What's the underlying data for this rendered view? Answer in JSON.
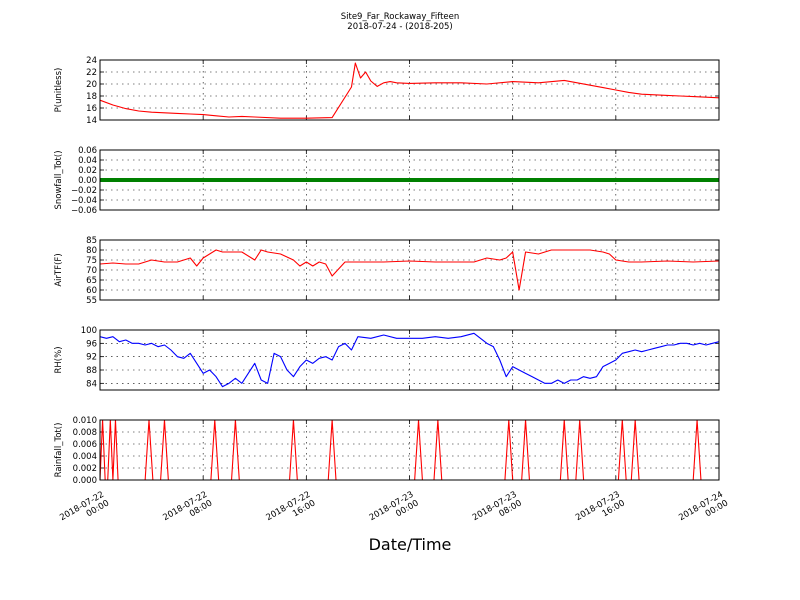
{
  "figure": {
    "title": "Site9_Far_Rockaway_Fifteen",
    "subtitle": "2018-07-24 - (2018-205)",
    "xlabel": "Date/Time"
  },
  "chart_data": [
    {
      "type": "line",
      "ylabel": "P(unitless)",
      "ylim": [
        14,
        24
      ],
      "yticks": [
        "14",
        "16",
        "18",
        "20",
        "22",
        "24"
      ],
      "grid": true,
      "color": "#ff0000",
      "series": [
        {
          "x": [
            0,
            1,
            2,
            3,
            4,
            5,
            6,
            7,
            8,
            9,
            10,
            11,
            12,
            14,
            16,
            18,
            19.5,
            19.8,
            20.2,
            20.6,
            21,
            21.5,
            22,
            22.5,
            23,
            24,
            26,
            28,
            30,
            32,
            34,
            36,
            37,
            38,
            39,
            40,
            41,
            42,
            43,
            44,
            45,
            46,
            47,
            48
          ],
          "values": [
            17.3,
            16.5,
            15.9,
            15.5,
            15.3,
            15.2,
            15.1,
            15.0,
            14.9,
            14.7,
            14.5,
            14.6,
            14.5,
            14.3,
            14.3,
            14.4,
            19.5,
            23.5,
            21.0,
            22.0,
            20.5,
            19.6,
            20.2,
            20.4,
            20.2,
            20.1,
            20.2,
            20.2,
            20.0,
            20.4,
            20.2,
            20.6,
            20.2,
            19.8,
            19.4,
            19.0,
            18.6,
            18.3,
            18.2,
            18.1,
            18.0,
            17.9,
            17.8,
            17.7
          ]
        }
      ]
    },
    {
      "type": "line",
      "ylabel": "Snowfall_Tot()",
      "ylim": [
        -0.06,
        0.06
      ],
      "yticks": [
        "−0.06",
        "−0.04",
        "−0.02",
        "0.00",
        "0.02",
        "0.04",
        "0.06"
      ],
      "grid": true,
      "color": "#008000",
      "series": [
        {
          "x": [
            0,
            48
          ],
          "values": [
            0,
            0
          ]
        }
      ]
    },
    {
      "type": "line",
      "ylabel": "AirTF(F)",
      "ylim": [
        55,
        85
      ],
      "yticks": [
        "55",
        "60",
        "65",
        "70",
        "75",
        "80",
        "85"
      ],
      "grid": true,
      "color": "#ff0000",
      "series": [
        {
          "x": [
            0,
            1,
            2,
            3,
            4,
            5,
            6,
            7,
            7.5,
            8,
            9,
            9.5,
            10,
            11,
            12,
            12.5,
            13,
            14,
            15,
            15.5,
            16,
            16.5,
            17,
            17.5,
            18,
            19,
            20,
            22,
            24,
            26,
            28,
            29,
            30,
            31,
            31.5,
            32,
            32.5,
            33,
            34,
            35,
            36,
            37,
            38,
            39,
            39.5,
            40,
            41,
            42,
            44,
            46,
            48
          ],
          "values": [
            73,
            73.5,
            73,
            73,
            75,
            74,
            74,
            76,
            72,
            76,
            80,
            79,
            79,
            79,
            75,
            80,
            79,
            78,
            75,
            72,
            74,
            72,
            74,
            73,
            67,
            74,
            74,
            74,
            74.5,
            74,
            74,
            74,
            76,
            75,
            76,
            79,
            60,
            79,
            78,
            80,
            80,
            80,
            80,
            79,
            78,
            75,
            74,
            74,
            74.5,
            74,
            74.5
          ]
        }
      ]
    },
    {
      "type": "line",
      "ylabel": "RH(%)",
      "ylim": [
        82,
        100
      ],
      "yticks": [
        "84",
        "88",
        "92",
        "96",
        "100"
      ],
      "grid": true,
      "color": "#0000ff",
      "series": [
        {
          "x": [
            0,
            0.5,
            1,
            1.5,
            2,
            2.5,
            3,
            3.5,
            4,
            4.5,
            5,
            5.5,
            6,
            6.5,
            7,
            7.5,
            8,
            8.5,
            9,
            9.5,
            10,
            10.5,
            11,
            11.5,
            12,
            12.5,
            13,
            13.5,
            14,
            14.5,
            15,
            15.5,
            16,
            16.5,
            17,
            17.5,
            18,
            18.5,
            19,
            19.5,
            20,
            21,
            22,
            23,
            24,
            25,
            26,
            27,
            28,
            29,
            29.5,
            30,
            30.5,
            31,
            31.5,
            32,
            32.5,
            33,
            33.5,
            34,
            34.5,
            35,
            35.5,
            36,
            36.5,
            37,
            37.5,
            38,
            38.5,
            39,
            39.5,
            40,
            40.5,
            41,
            41.5,
            42,
            42.5,
            43,
            43.5,
            44,
            44.5,
            45,
            45.5,
            46,
            46.5,
            47,
            47.5,
            48
          ],
          "values": [
            98,
            97.5,
            98,
            96.5,
            97,
            96,
            96,
            95.5,
            96,
            95,
            95.5,
            94,
            92,
            91.5,
            93,
            90,
            87,
            88,
            86,
            83,
            84,
            85.5,
            84,
            87,
            90,
            85,
            84,
            93,
            92,
            88,
            86,
            89,
            91,
            90,
            91.5,
            92,
            91,
            95,
            96,
            94,
            98,
            97.5,
            98.5,
            97.5,
            97.5,
            97.5,
            98,
            97.5,
            98,
            99,
            97.5,
            96,
            95,
            91,
            86,
            89,
            88,
            87,
            86,
            85,
            84,
            84,
            85,
            84,
            85,
            85,
            86,
            85.5,
            86,
            89,
            90,
            91,
            93,
            93.5,
            94,
            93.5,
            94,
            94.5,
            95,
            95.5,
            95.5,
            96,
            96,
            95.5,
            96,
            95.5,
            96,
            96.5
          ]
        }
      ]
    },
    {
      "type": "line",
      "ylabel": "Rainfall_Tot()",
      "ylim": [
        0,
        0.01
      ],
      "yticks": [
        "0.000",
        "0.002",
        "0.004",
        "0.006",
        "0.008",
        "0.010"
      ],
      "grid": true,
      "color": "#ff0000",
      "series": [
        {
          "x": [
            0,
            0.2,
            0.4,
            0.6,
            0.8,
            1.0,
            1.2,
            1.4,
            1.6,
            3.5,
            3.8,
            4.1,
            4.7,
            5.0,
            5.3,
            8.6,
            8.9,
            9.2,
            10.2,
            10.5,
            10.8,
            14.7,
            15.0,
            15.3,
            17.7,
            18.0,
            18.3,
            24.4,
            24.7,
            25.0,
            25.9,
            26.2,
            26.5,
            31.4,
            31.7,
            32.0,
            32.7,
            33.0,
            33.3,
            35.7,
            36.0,
            36.3,
            36.9,
            37.2,
            37.5,
            40.2,
            40.5,
            40.8,
            41.2,
            41.5,
            41.8,
            46.0,
            46.3,
            46.6,
            48
          ],
          "values": [
            0,
            0.01,
            0,
            0,
            0.01,
            0,
            0.01,
            0,
            0,
            0,
            0.01,
            0,
            0,
            0.01,
            0,
            0,
            0.01,
            0,
            0,
            0.01,
            0,
            0,
            0.01,
            0,
            0,
            0.01,
            0,
            0,
            0.01,
            0,
            0,
            0.01,
            0,
            0,
            0.01,
            0,
            0,
            0.01,
            0,
            0,
            0.01,
            0,
            0,
            0.01,
            0,
            0,
            0.01,
            0,
            0,
            0.01,
            0,
            0,
            0.01,
            0,
            0
          ]
        }
      ]
    }
  ],
  "xaxis": {
    "range_hours": [
      0,
      48
    ],
    "ticks": [
      {
        "at": 0,
        "line1": "2018-07-22",
        "line2": "00:00"
      },
      {
        "at": 8,
        "line1": "2018-07-22",
        "line2": "08:00"
      },
      {
        "at": 16,
        "line1": "2018-07-22",
        "line2": "16:00"
      },
      {
        "at": 24,
        "line1": "2018-07-23",
        "line2": "00:00"
      },
      {
        "at": 32,
        "line1": "2018-07-23",
        "line2": "08:00"
      },
      {
        "at": 40,
        "line1": "2018-07-23",
        "line2": "16:00"
      },
      {
        "at": 48,
        "line1": "2018-07-24",
        "line2": "00:00"
      }
    ]
  }
}
